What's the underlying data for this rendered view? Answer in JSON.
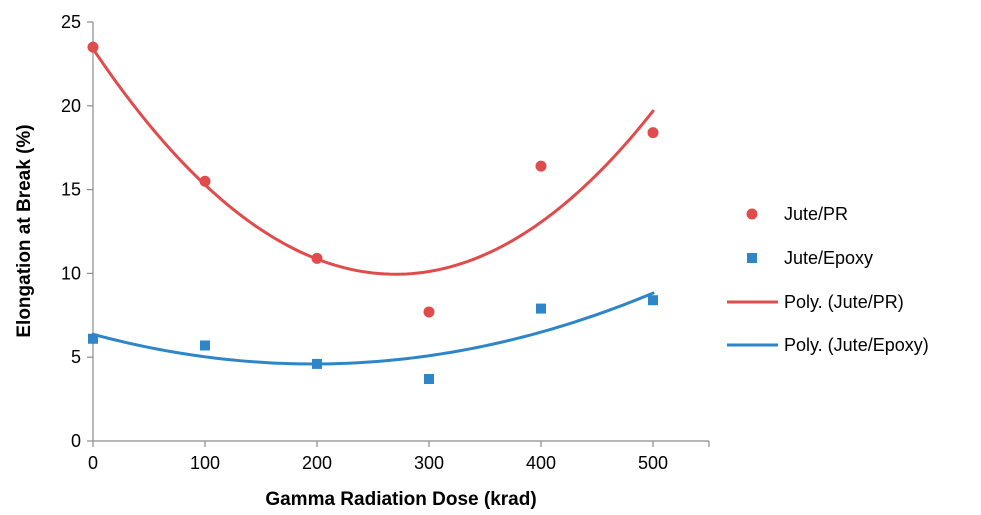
{
  "chart_data": {
    "type": "scatter",
    "title": "",
    "xlabel": "Gamma Radiation Dose (krad)",
    "ylabel": "Elongation at Break (%)",
    "xlim": [
      0,
      550
    ],
    "ylim": [
      0,
      25
    ],
    "x_ticks": [
      "0",
      "100",
      "200",
      "300",
      "400",
      "500"
    ],
    "y_ticks": [
      "0",
      "5",
      "10",
      "15",
      "20",
      "25"
    ],
    "grid": false,
    "legend_position": "right",
    "series": [
      {
        "name": "Jute/PR",
        "marker": "circle",
        "color": "#e04b4b",
        "points": [
          [
            0,
            23.5
          ],
          [
            100,
            15.5
          ],
          [
            200,
            10.9
          ],
          [
            300,
            7.7
          ],
          [
            400,
            16.4
          ],
          [
            500,
            18.4
          ]
        ]
      },
      {
        "name": "Jute/Epoxy",
        "marker": "square",
        "color": "#2e86c8",
        "points": [
          [
            0,
            6.1
          ],
          [
            100,
            5.7
          ],
          [
            200,
            4.6
          ],
          [
            300,
            3.7
          ],
          [
            400,
            7.9
          ],
          [
            500,
            8.4
          ]
        ]
      }
    ],
    "trendlines": [
      {
        "name": "Poly. (Jute/PR)",
        "color": "#e04b4b",
        "order": 2,
        "of_series": "Jute/PR"
      },
      {
        "name": "Poly. (Jute/Epoxy)",
        "color": "#2e86c8",
        "order": 2,
        "of_series": "Jute/Epoxy"
      }
    ]
  }
}
